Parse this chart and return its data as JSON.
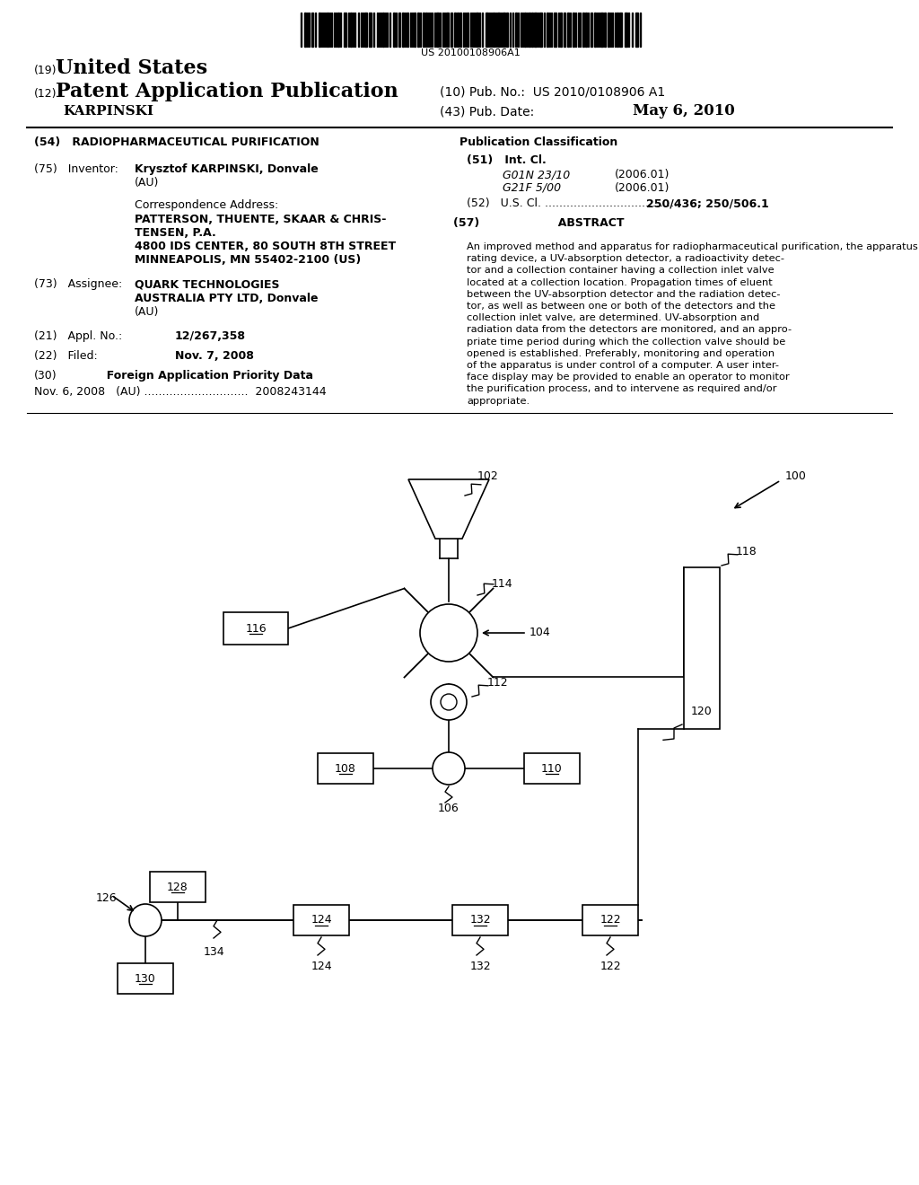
{
  "bg_color": "#ffffff",
  "barcode_text": "US 20100108906A1",
  "header_19": "(19)",
  "header_us": "United States",
  "header_12": "(12)",
  "header_pat": "Patent Application Publication",
  "header_karpinski": "KARPINSKI",
  "header_10": "(10) Pub. No.:  US 2010/0108906 A1",
  "header_43": "(43) Pub. Date:",
  "header_date": "May 6, 2010",
  "field54_label": "(54)   RADIOPHARMACEUTICAL PURIFICATION",
  "field75_label": "(75)   Inventor:",
  "field75_value": "Krysztof KARPINSKI, Donvale",
  "corr_label": "Correspondence Address:",
  "field73_label": "(73)   Assignee:",
  "field21_label": "(21)   Appl. No.:",
  "field21_value": "12/267,358",
  "field22_label": "(22)   Filed:",
  "field22_value": "Nov. 7, 2008",
  "field30_label": "(30)",
  "field30_value": "Nov. 6, 2008   (AU) .............................  2008243144",
  "pub_class_label": "Publication Classification",
  "int_cl_label": "(51)   Int. Cl.",
  "int_cl_1": "G01N 23/10",
  "int_cl_1_year": "(2006.01)",
  "int_cl_2": "G21F 5/00",
  "int_cl_2_year": "(2006.01)",
  "us_cl_label": "(52)   U.S. Cl. ......................................",
  "us_cl_value": "250/436; 250/506.1",
  "abstract_label": "(57)                    ABSTRACT",
  "abstract_text": "An improved method and apparatus for radiopharmaceutical purification, the apparatus including a chromatographic sepa-\nrating device, a UV-absorption detector, a radioactivity detec-\ntor and a collection container having a collection inlet valve\nlocated at a collection location. Propagation times of eluent\nbetween the UV-absorption detector and the radiation detec-\ntor, as well as between one or both of the detectors and the\ncollection inlet valve, are determined. UV-absorption and\nradiation data from the detectors are monitored, and an appro-\npriate time period during which the collection valve should be\nopened is established. Preferably, monitoring and operation\nof the apparatus is under control of a computer. A user inter-\nface display may be provided to enable an operator to monitor\nthe purification process, and to intervene as required and/or\nappropriate."
}
